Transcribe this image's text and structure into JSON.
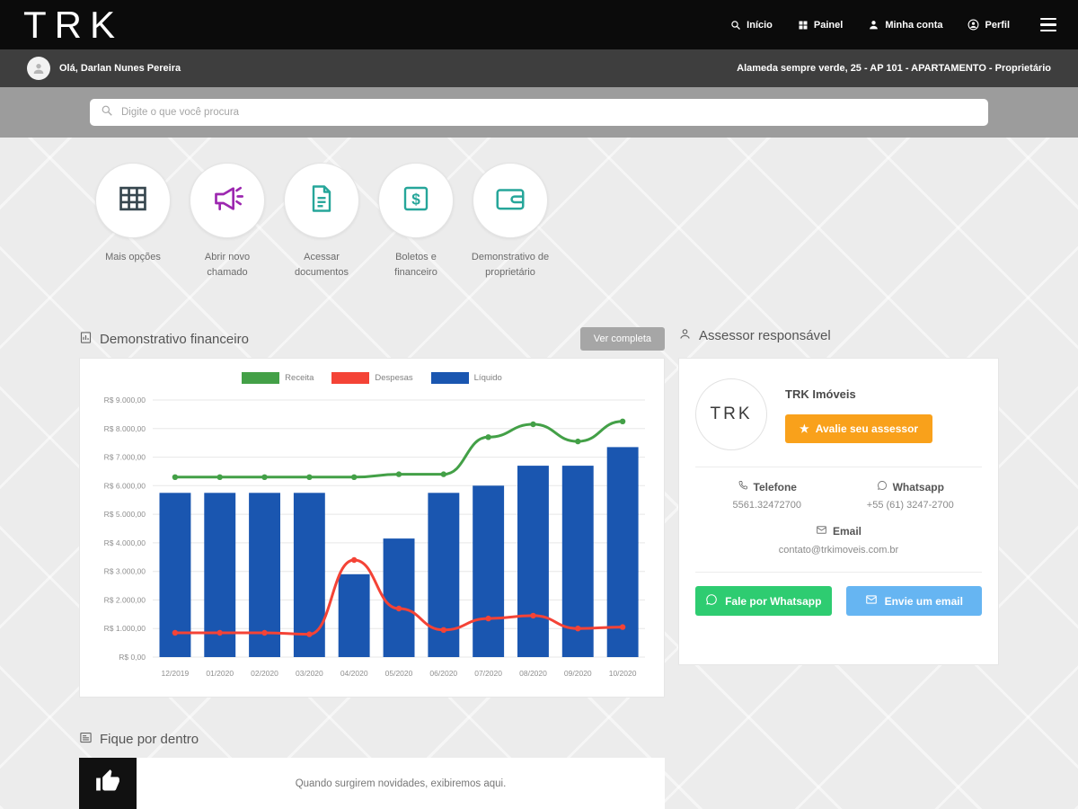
{
  "header": {
    "logo": "TRK",
    "nav": [
      {
        "label": "Início",
        "icon": "search-icon"
      },
      {
        "label": "Painel",
        "icon": "grid-icon"
      },
      {
        "label": "Minha conta",
        "icon": "user-icon"
      },
      {
        "label": "Perfil",
        "icon": "profile-icon"
      }
    ],
    "menu_icon": "hamburger-icon"
  },
  "userbar": {
    "greeting": "Olá, Darlan Nunes Pereira",
    "property": "Alameda sempre verde, 25 - AP 101 - APARTAMENTO - Proprietário"
  },
  "search": {
    "placeholder": "Digite o que você procura",
    "icon": "search-icon"
  },
  "quick_actions": [
    {
      "label": "Mais opções",
      "icon": "table-grid-icon",
      "color": "#37474f"
    },
    {
      "label": "Abrir novo chamado",
      "icon": "megaphone-icon",
      "color": "#9c27b0"
    },
    {
      "label": "Acessar documentos",
      "icon": "document-icon",
      "color": "#26a69a"
    },
    {
      "label": "Boletos e financeiro",
      "icon": "dollar-icon",
      "color": "#26a69a"
    },
    {
      "label": "Demonstrativo de proprietário",
      "icon": "wallet-icon",
      "color": "#26a69a"
    }
  ],
  "financial": {
    "title": "Demonstrativo financeiro",
    "view_full_label": "Ver completa"
  },
  "chart_data": {
    "type": "bar",
    "categories": [
      "12/2019",
      "01/2020",
      "02/2020",
      "03/2020",
      "04/2020",
      "05/2020",
      "06/2020",
      "07/2020",
      "08/2020",
      "09/2020",
      "10/2020"
    ],
    "series": [
      {
        "name": "Receita",
        "type": "line",
        "color": "#43a047",
        "values": [
          6300,
          6300,
          6300,
          6300,
          6300,
          6400,
          6400,
          7700,
          8150,
          7550,
          8250
        ]
      },
      {
        "name": "Despesas",
        "type": "line",
        "color": "#f44336",
        "values": [
          850,
          850,
          850,
          800,
          3400,
          1700,
          950,
          1350,
          1450,
          1000,
          1050
        ]
      },
      {
        "name": "Líquido",
        "type": "bar",
        "color": "#1a56b0",
        "values": [
          5750,
          5750,
          5750,
          5750,
          2900,
          4150,
          5750,
          6000,
          6700,
          6700,
          7350
        ]
      }
    ],
    "ylim": [
      0,
      9000
    ],
    "ytick_step": 1000,
    "ytick_labels": [
      "R$ 0,00",
      "R$ 1.000,00",
      "R$ 2.000,00",
      "R$ 3.000,00",
      "R$ 4.000,00",
      "R$ 5.000,00",
      "R$ 6.000,00",
      "R$ 7.000,00",
      "R$ 8.000,00",
      "R$ 9.000,00"
    ],
    "grid": true,
    "legend_position": "top"
  },
  "advisor": {
    "title": "Assessor responsável",
    "logo_text": "TRK",
    "company": "TRK Imóveis",
    "rate_button": "Avalie seu assessor",
    "phone_label": "Telefone",
    "phone": "5561.32472700",
    "whatsapp_label": "Whatsapp",
    "whatsapp": "+55 (61) 3247-2700",
    "email_label": "Email",
    "email": "contato@trkimoveis.com.br",
    "whatsapp_button": "Fale por Whatsapp",
    "email_button": "Envie um email"
  },
  "news": {
    "title": "Fique por dentro",
    "empty_message": "Quando surgirem novidades, exibiremos aqui."
  },
  "icons": {
    "star": "★"
  },
  "colors": {
    "accent_orange": "#f9a11b",
    "whatsapp_green": "#2ecc71",
    "email_blue": "#66b5f2",
    "bar_blue": "#1a56b0",
    "line_green": "#43a047",
    "line_red": "#f44336",
    "topbar_black": "#0b0b0b",
    "userbar_gray": "#3e3e3e",
    "searchbar_gray": "#9c9c9c"
  }
}
